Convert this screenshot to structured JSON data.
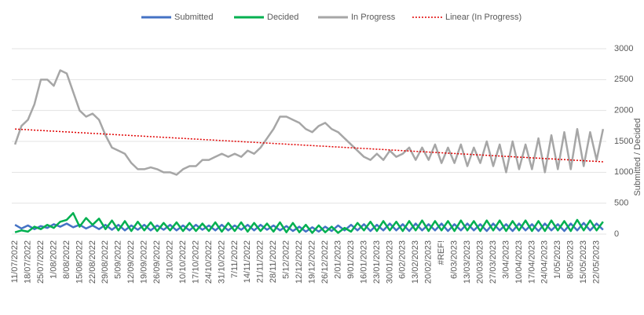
{
  "chart_data": {
    "type": "line",
    "categories": [
      "11/07/2022",
      null,
      "18/07/2022",
      null,
      "25/07/2022",
      null,
      "1/08/2022",
      null,
      "8/08/2022",
      null,
      "15/08/2022",
      null,
      "22/08/2022",
      null,
      "29/08/2022",
      null,
      "5/09/2022",
      null,
      "12/09/2022",
      null,
      "19/09/2022",
      null,
      "26/09/2022",
      null,
      "3/10/2022",
      null,
      "10/10/2022",
      null,
      "17/10/2022",
      null,
      "24/10/2022",
      null,
      "31/10/2022",
      null,
      "7/11/2022",
      null,
      "14/11/2022",
      null,
      "21/11/2022",
      null,
      "28/11/2022",
      null,
      "5/12/2022",
      null,
      "12/12/2022",
      null,
      "19/12/2022",
      null,
      "26/12/2022",
      null,
      "2/01/2023",
      null,
      "9/01/2023",
      null,
      "16/01/2023",
      null,
      "23/01/2023",
      null,
      "30/01/2023",
      null,
      "6/02/2023",
      null,
      "13/02/2023",
      null,
      "20/02/2023",
      null,
      "#REF!",
      null,
      "6/03/2023",
      null,
      "13/03/2023",
      null,
      "20/03/2023",
      null,
      "27/03/2023",
      null,
      "3/04/2023",
      null,
      "10/04/2023",
      null,
      "17/04/2023",
      null,
      "24/04/2023",
      null,
      "1/05/2023",
      null,
      "8/05/2023",
      null,
      "15/05/2023",
      null,
      "22/05/2023",
      null
    ],
    "series": [
      {
        "name": "Submitted",
        "color": "#4472c4",
        "values": [
          150,
          90,
          140,
          80,
          130,
          100,
          160,
          120,
          170,
          110,
          150,
          90,
          140,
          80,
          150,
          70,
          150,
          60,
          140,
          70,
          150,
          60,
          140,
          70,
          150,
          60,
          140,
          60,
          150,
          70,
          140,
          60,
          150,
          60,
          140,
          70,
          150,
          60,
          150,
          70,
          140,
          60,
          130,
          50,
          120,
          40,
          110,
          40,
          120,
          50,
          140,
          60,
          150,
          60,
          160,
          50,
          150,
          60,
          170,
          60,
          160,
          50,
          170,
          60,
          160,
          60,
          170,
          50,
          160,
          60,
          170,
          60,
          160,
          50,
          170,
          60,
          160,
          50,
          170,
          60,
          160,
          50,
          170,
          60,
          160,
          50,
          170,
          60,
          180,
          60,
          170,
          70
        ]
      },
      {
        "name": "Decided",
        "color": "#00b050",
        "values": [
          30,
          60,
          40,
          120,
          80,
          150,
          100,
          200,
          230,
          340,
          120,
          260,
          150,
          250,
          80,
          220,
          60,
          210,
          50,
          200,
          60,
          190,
          50,
          180,
          60,
          190,
          50,
          180,
          50,
          170,
          50,
          190,
          40,
          180,
          50,
          190,
          40,
          180,
          50,
          170,
          40,
          190,
          30,
          180,
          30,
          150,
          20,
          140,
          30,
          120,
          20,
          100,
          40,
          180,
          60,
          200,
          50,
          210,
          60,
          200,
          50,
          210,
          60,
          220,
          50,
          210,
          60,
          210,
          50,
          220,
          60,
          210,
          50,
          220,
          60,
          220,
          50,
          210,
          60,
          220,
          50,
          210,
          50,
          220,
          60,
          210,
          50,
          230,
          60,
          220,
          60,
          200
        ]
      },
      {
        "name": "In Progress",
        "color": "#a6a6a6",
        "values": [
          1450,
          1750,
          1850,
          2100,
          2500,
          2500,
          2400,
          2650,
          2600,
          2300,
          2000,
          1900,
          1950,
          1850,
          1600,
          1400,
          1350,
          1300,
          1150,
          1050,
          1050,
          1080,
          1050,
          1000,
          1000,
          960,
          1050,
          1100,
          1100,
          1200,
          1200,
          1250,
          1300,
          1250,
          1300,
          1250,
          1350,
          1300,
          1400,
          1550,
          1700,
          1900,
          1900,
          1850,
          1800,
          1700,
          1650,
          1750,
          1800,
          1700,
          1650,
          1550,
          1450,
          1350,
          1250,
          1200,
          1300,
          1200,
          1350,
          1250,
          1300,
          1400,
          1200,
          1400,
          1200,
          1450,
          1150,
          1400,
          1150,
          1450,
          1100,
          1400,
          1150,
          1500,
          1100,
          1450,
          1000,
          1500,
          1050,
          1450,
          1050,
          1550,
          1000,
          1600,
          1050,
          1650,
          1050,
          1700,
          1100,
          1650,
          1200,
          1700
        ]
      }
    ],
    "trendline": {
      "name": "Linear (In Progress)",
      "color": "#e00000",
      "start": 1700,
      "end": 1170
    },
    "ylabel": "Submitted / Decided",
    "ylim": [
      0,
      3000
    ],
    "yticks": [
      0,
      500,
      1000,
      1500,
      2000,
      2500,
      3000
    ],
    "grid": true,
    "legend": "top"
  }
}
